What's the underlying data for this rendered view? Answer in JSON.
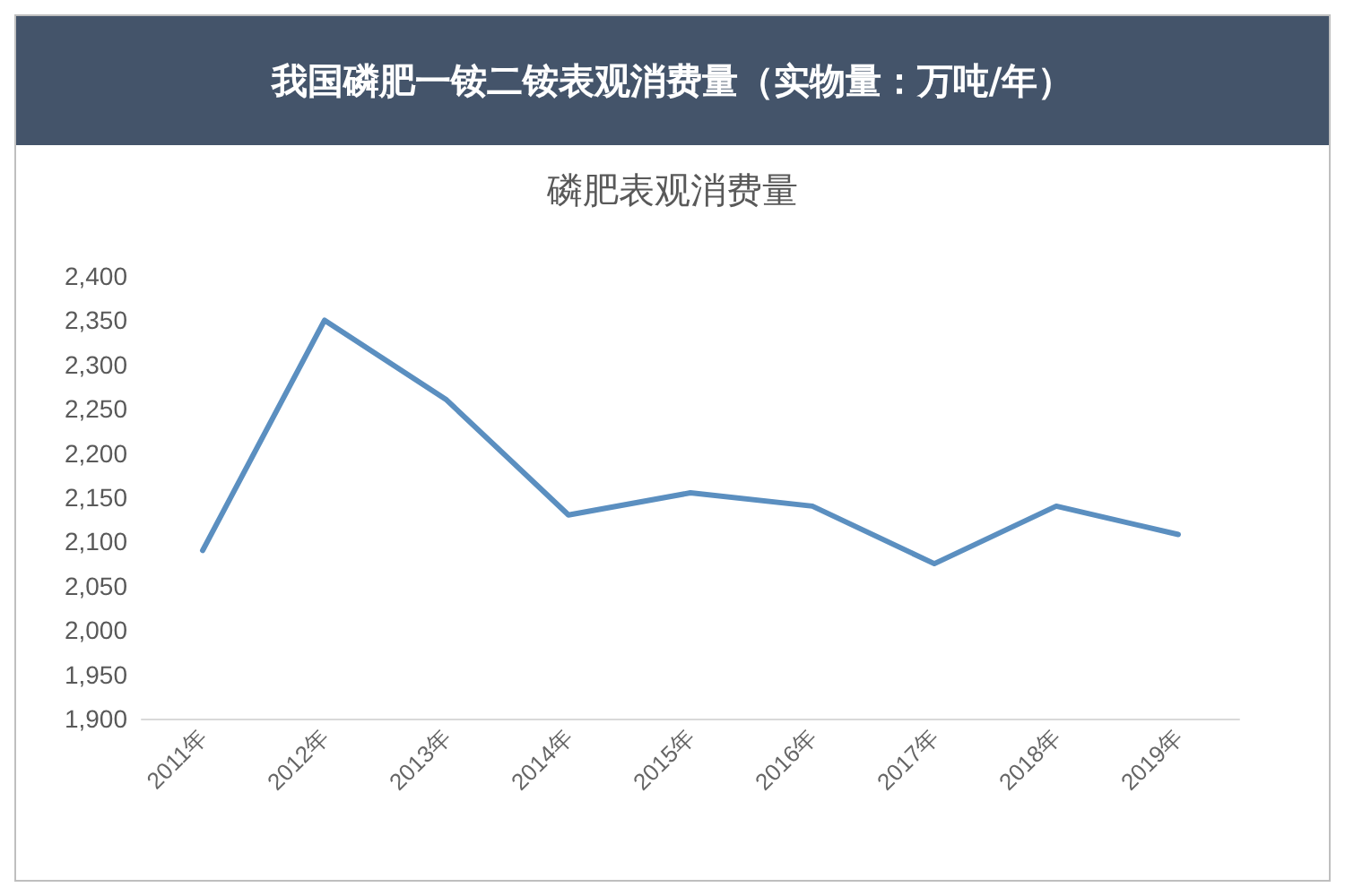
{
  "chart_data": {
    "type": "line",
    "title": "我国磷肥一铵二铵表观消费量（实物量：万吨/年）",
    "subtitle": "磷肥表观消费量",
    "categories": [
      "2011年",
      "2012年",
      "2013年",
      "2014年",
      "2015年",
      "2016年",
      "2017年",
      "2018年",
      "2019年"
    ],
    "series": [
      {
        "color": "#5b8fc0",
        "values": [
          2090,
          2350,
          2260,
          2130,
          2155,
          2140,
          2075,
          2140,
          2108
        ]
      }
    ],
    "ylim": [
      1900,
      2400
    ],
    "yticks": [
      {
        "value": 1900,
        "label": "1,900"
      },
      {
        "value": 1950,
        "label": "1,950"
      },
      {
        "value": 2000,
        "label": "2,000"
      },
      {
        "value": 2050,
        "label": "2,050"
      },
      {
        "value": 2100,
        "label": "2,100"
      },
      {
        "value": 2150,
        "label": "2,150"
      },
      {
        "value": 2200,
        "label": "2,200"
      },
      {
        "value": 2250,
        "label": "2,250"
      },
      {
        "value": 2300,
        "label": "2,300"
      },
      {
        "value": 2350,
        "label": "2,350"
      },
      {
        "value": 2400,
        "label": "2,400"
      }
    ],
    "grid": false,
    "marker": "none",
    "line_style": "solid"
  }
}
